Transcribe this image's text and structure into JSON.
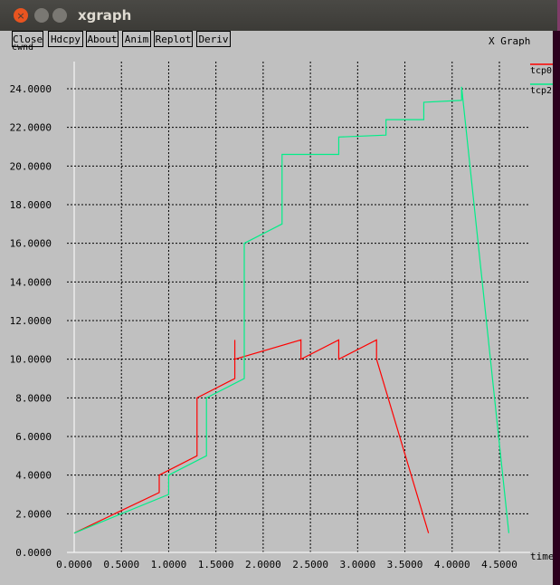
{
  "window": {
    "title": "xgraph"
  },
  "toolbar": [
    "Close",
    "Hdcpy",
    "About",
    "Anim",
    "Replot",
    "Deriv"
  ],
  "graph_title": "X Graph",
  "chart_data": {
    "type": "line",
    "title": "X Graph",
    "ylabel": "cwnd",
    "xlabel": "time",
    "xlim": [
      0,
      4.6
    ],
    "ylim": [
      0,
      24
    ],
    "xticks": [
      "0.0000",
      "0.5000",
      "1.0000",
      "1.5000",
      "2.0000",
      "2.5000",
      "3.0000",
      "3.5000",
      "4.0000",
      "4.5000"
    ],
    "yticks": [
      "0.0000",
      "2.0000",
      "4.0000",
      "6.0000",
      "8.0000",
      "10.0000",
      "12.0000",
      "14.0000",
      "16.0000",
      "18.0000",
      "20.0000",
      "22.0000",
      "24.0000"
    ],
    "grid": true,
    "legend": "top-right",
    "series": [
      {
        "name": "tcp0",
        "color": "#ff0000",
        "x": [
          0,
          0.9,
          0.9,
          1.3,
          1.3,
          1.7,
          1.7,
          1.7,
          2.4,
          2.4,
          2.8,
          2.8,
          3.2,
          3.2,
          3.75
        ],
        "y": [
          1,
          3.1,
          4.0,
          5.0,
          8.0,
          9.0,
          11.0,
          10.0,
          11.0,
          10.0,
          11.0,
          10.0,
          11.0,
          10.0,
          1.0
        ]
      },
      {
        "name": "tcp2",
        "color": "#00ee88",
        "x": [
          0,
          1.0,
          1.0,
          1.4,
          1.4,
          1.8,
          1.8,
          2.2,
          2.2,
          2.8,
          2.8,
          3.3,
          3.3,
          3.7,
          3.7,
          4.1,
          4.1,
          4.6
        ],
        "y": [
          1,
          3.0,
          4.0,
          5.0,
          8.0,
          9.0,
          16.0,
          17.0,
          20.6,
          20.6,
          21.5,
          21.6,
          22.4,
          22.4,
          23.3,
          23.4,
          24.1,
          1.0
        ]
      }
    ]
  }
}
